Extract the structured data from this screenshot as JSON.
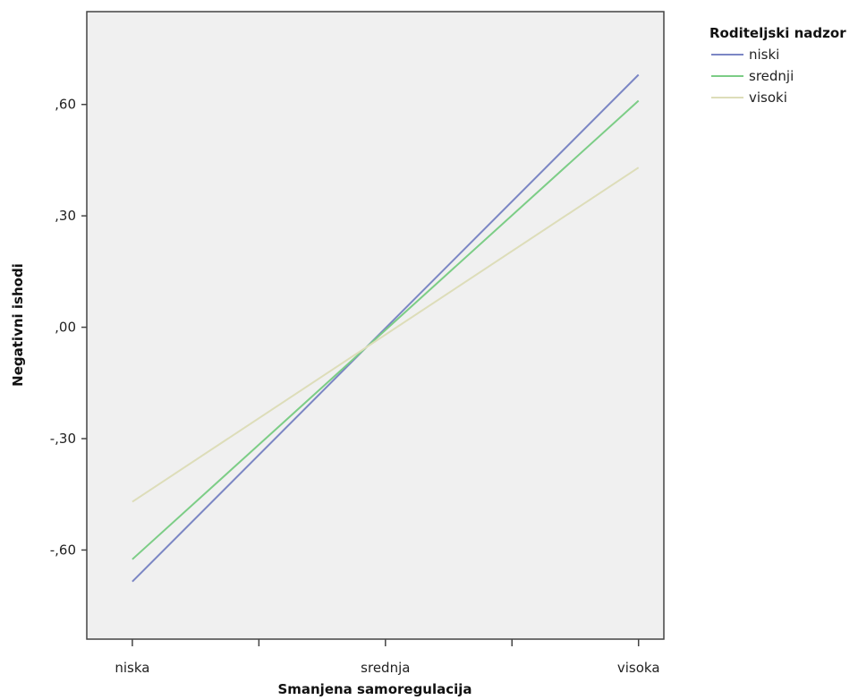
{
  "chart_data": {
    "type": "line",
    "title": "",
    "xlabel": "Smanjena samoregulacija",
    "ylabel": "Negativni ishodi",
    "categories": [
      "niska",
      "srednja",
      "visoka"
    ],
    "x_ticks": [
      0,
      0.5,
      1,
      1.5,
      2
    ],
    "y_ticks": [
      {
        "value": 0.6,
        "label": ",60"
      },
      {
        "value": 0.3,
        "label": ",30"
      },
      {
        "value": 0.0,
        "label": ",00"
      },
      {
        "value": -0.3,
        "label": "-,30"
      },
      {
        "value": -0.6,
        "label": "-,60"
      }
    ],
    "xlim": [
      -0.18,
      2.1
    ],
    "ylim": [
      -0.84,
      0.85
    ],
    "grid": false,
    "legend": {
      "title": "Roditeljski nadzor",
      "placement": "outside right"
    },
    "series": [
      {
        "name": "niski",
        "color": "#7b86c4",
        "x": [
          0,
          2
        ],
        "y": [
          -0.685,
          0.68
        ]
      },
      {
        "name": "srednji",
        "color": "#7ccd86",
        "x": [
          0,
          2
        ],
        "y": [
          -0.625,
          0.61
        ]
      },
      {
        "name": "visoki",
        "color": "#ddddb9",
        "x": [
          0,
          2
        ],
        "y": [
          -0.47,
          0.43
        ]
      }
    ],
    "colors": {
      "plot_background": "#f0f0f0",
      "axis": "#444444"
    }
  }
}
